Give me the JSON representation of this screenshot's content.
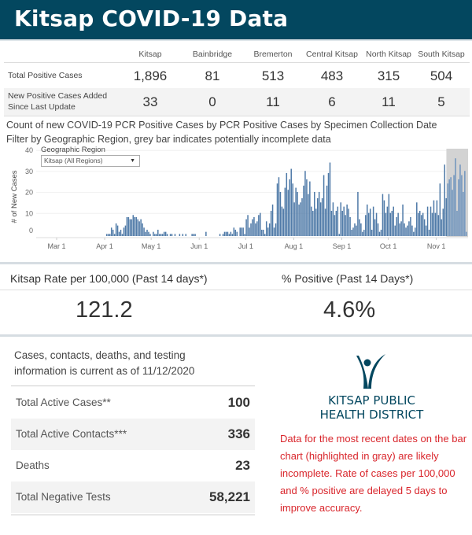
{
  "header": {
    "title": "Kitsap COVID-19 Data"
  },
  "summary_table": {
    "columns": [
      "Kitsap",
      "Bainbridge",
      "Bremerton",
      "Central Kitsap",
      "North Kitsap",
      "South Kitsap"
    ],
    "rows": [
      {
        "label": "Total Positive Cases",
        "values": [
          "1,896",
          "81",
          "513",
          "483",
          "315",
          "504"
        ]
      },
      {
        "label": "New Positive Cases Added Since Last Update",
        "label_line1": "New Positive Cases Added",
        "label_line2": "Since Last Update",
        "values": [
          "33",
          "0",
          "11",
          "6",
          "11",
          "5"
        ]
      }
    ]
  },
  "chart_title": {
    "line1": "Count of new COVID-19 PCR Positive Cases by PCR Positive Cases by Specimen Collection Date",
    "line2": "Filter by Geographic Region, grey bar indicates potentially incomplete data"
  },
  "filter": {
    "label": "Geographic Region",
    "selected": "Kitsap (All Regions)",
    "icon": "dropdown-arrow-icon"
  },
  "chart_data": {
    "type": "bar",
    "title": "Count of new COVID-19 PCR Positive Cases by Specimen Collection Date",
    "xlabel": "",
    "ylabel": "# of New Cases",
    "ylim": [
      0,
      43
    ],
    "yticks": [
      0,
      10,
      20,
      30,
      40
    ],
    "xtick_labels": [
      "Mar 1",
      "Apr 1",
      "May 1",
      "Jun 1",
      "Jul 1",
      "Aug 1",
      "Sep 1",
      "Oct 1",
      "Nov 1"
    ],
    "xtick_day_offsets": [
      0,
      31,
      61,
      92,
      122,
      153,
      184,
      214,
      245
    ],
    "start_date": "Mar 1",
    "grid": true,
    "bar_color": "#4e79a7",
    "incomplete_color": "#d3d3d3",
    "incomplete_from_day": 252,
    "values": [
      0,
      0,
      0,
      0,
      0,
      0,
      0,
      0,
      0,
      0,
      0,
      0,
      0,
      0,
      0,
      0,
      0,
      0,
      0,
      0,
      0,
      0,
      0,
      0,
      0,
      0,
      0,
      0,
      0,
      0,
      0,
      0,
      1,
      1,
      1,
      4,
      3,
      1,
      6,
      5,
      2,
      3,
      1,
      4,
      5,
      9,
      9,
      8,
      8,
      10,
      9,
      9,
      8,
      7,
      8,
      6,
      4,
      2,
      3,
      2,
      1,
      0,
      2,
      1,
      1,
      3,
      1,
      1,
      1,
      2,
      2,
      1,
      0,
      1,
      1,
      0,
      1,
      0,
      0,
      1,
      0,
      1,
      0,
      1,
      0,
      0,
      0,
      1,
      1,
      1,
      0,
      0,
      0,
      0,
      0,
      0,
      2,
      0,
      0,
      0,
      0,
      0,
      0,
      0,
      0,
      1,
      0,
      1,
      2,
      2,
      2,
      1,
      2,
      1,
      4,
      3,
      2,
      0,
      4,
      4,
      4,
      1,
      8,
      10,
      4,
      6,
      8,
      9,
      6,
      7,
      10,
      11,
      3,
      3,
      1,
      7,
      4,
      6,
      12,
      15,
      4,
      6,
      25,
      28,
      21,
      14,
      13,
      23,
      30,
      22,
      27,
      32,
      25,
      16,
      23,
      21,
      15,
      16,
      18,
      24,
      31,
      27,
      20,
      26,
      14,
      12,
      21,
      13,
      18,
      21,
      16,
      18,
      29,
      13,
      24,
      30,
      35,
      12,
      16,
      10,
      12,
      14,
      1,
      16,
      12,
      14,
      10,
      15,
      13,
      9,
      3,
      4,
      6,
      5,
      21,
      8,
      6,
      2,
      3,
      10,
      15,
      11,
      13,
      3,
      14,
      8,
      11,
      6,
      2,
      3,
      20,
      17,
      11,
      14,
      20,
      11,
      12,
      14,
      5,
      9,
      11,
      6,
      7,
      15,
      6,
      4,
      5,
      7,
      9,
      5,
      2,
      4,
      16,
      11,
      12,
      10,
      11,
      8,
      5,
      14,
      3,
      14,
      11,
      17,
      11,
      17,
      10,
      25,
      8,
      13,
      34,
      18,
      25,
      27,
      28,
      22,
      29,
      37,
      12,
      27,
      34,
      29,
      21,
      31,
      2
    ],
    "approximate": true
  },
  "kpis": [
    {
      "label": "Kitsap Rate per 100,000 (Past 14 days*)",
      "value": "121.2"
    },
    {
      "label": "% Positive (Past 14 Days*)",
      "value": "4.6%"
    }
  ],
  "as_of": {
    "line1": "Cases, contacts, deaths, and testing",
    "line2": "information is current as of 11/12/2020"
  },
  "stats": [
    {
      "label": "Total Active Cases**",
      "value": "100"
    },
    {
      "label": "Total Active Contacts***",
      "value": "336"
    },
    {
      "label": "Deaths",
      "value": "23"
    },
    {
      "label": "Total Negative Tests",
      "value": "58,221"
    }
  ],
  "logo": {
    "icon": "person-figure-logo-icon",
    "line1": "KITSAP PUBLIC",
    "line2": "HEALTH DISTRICT",
    "color": "#03475f"
  },
  "note": {
    "text": "Data for the most recent dates on the bar chart (highlighted in gray) are likely incomplete. Rate of cases per 100,000 and % positive are delayed 5 days to improve accuracy.",
    "color": "#d9262c"
  }
}
